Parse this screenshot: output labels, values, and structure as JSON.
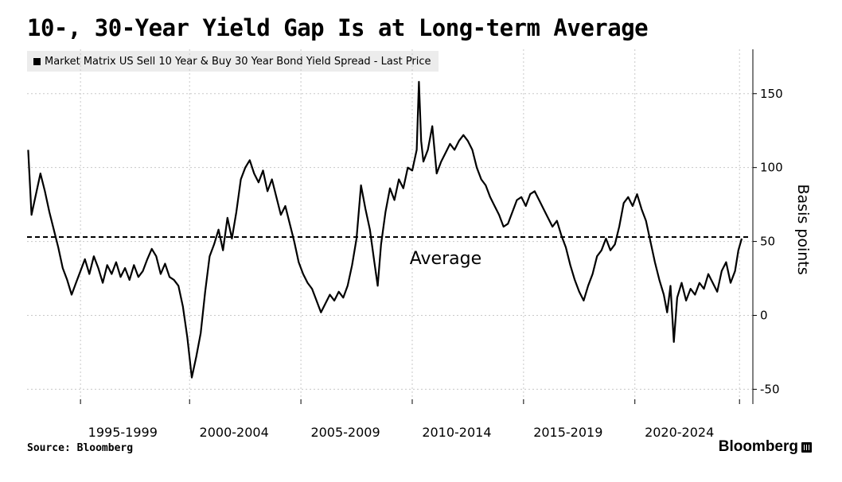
{
  "title": "10-, 30-Year Yield Gap Is at Long-term Average",
  "legend": {
    "label": "Market Matrix US Sell 10 Year & Buy 30 Year Bond Yield Spread - Last Price",
    "color": "#000000"
  },
  "source": "Source: Bloomberg",
  "brand": "Bloomberg",
  "brand_icon": "bloomberg-terminal-icon",
  "chart_data": {
    "type": "line",
    "ylabel": "Basis points",
    "ylim": [
      -60,
      180
    ],
    "yticks": [
      -50,
      0,
      50,
      100,
      150
    ],
    "xlim": [
      1993.2,
      2025.8
    ],
    "xticks": [
      {
        "label": "1995-1999",
        "at": 1997.5
      },
      {
        "label": "2000-2004",
        "at": 2002.5
      },
      {
        "label": "2005-2009",
        "at": 2007.5
      },
      {
        "label": "2010-2014",
        "at": 2012.5
      },
      {
        "label": "2015-2019",
        "at": 2017.5
      },
      {
        "label": "2020-2024",
        "at": 2022.5
      }
    ],
    "gridlines_x": [
      1995.6,
      2000.5,
      2005.5,
      2010.5,
      2015.5,
      2020.5,
      2025.2
    ],
    "grid": true,
    "average": {
      "value": 53,
      "label": "Average"
    },
    "series": [
      {
        "name": "Market Matrix US Sell 10 Year & Buy 30 Year Bond Yield Spread - Last Price",
        "color": "#000000",
        "points": [
          [
            1993.25,
            112
          ],
          [
            1993.4,
            68
          ],
          [
            1993.6,
            82
          ],
          [
            1993.8,
            96
          ],
          [
            1994.0,
            84
          ],
          [
            1994.2,
            70
          ],
          [
            1994.4,
            58
          ],
          [
            1994.6,
            46
          ],
          [
            1994.8,
            32
          ],
          [
            1995.0,
            24
          ],
          [
            1995.2,
            14
          ],
          [
            1995.4,
            22
          ],
          [
            1995.6,
            30
          ],
          [
            1995.8,
            38
          ],
          [
            1996.0,
            28
          ],
          [
            1996.2,
            40
          ],
          [
            1996.4,
            32
          ],
          [
            1996.6,
            22
          ],
          [
            1996.8,
            34
          ],
          [
            1997.0,
            28
          ],
          [
            1997.2,
            36
          ],
          [
            1997.4,
            26
          ],
          [
            1997.6,
            32
          ],
          [
            1997.8,
            24
          ],
          [
            1998.0,
            34
          ],
          [
            1998.2,
            26
          ],
          [
            1998.4,
            30
          ],
          [
            1998.6,
            38
          ],
          [
            1998.8,
            45
          ],
          [
            1999.0,
            40
          ],
          [
            1999.2,
            28
          ],
          [
            1999.4,
            35
          ],
          [
            1999.6,
            26
          ],
          [
            1999.8,
            24
          ],
          [
            2000.0,
            20
          ],
          [
            2000.2,
            6
          ],
          [
            2000.4,
            -15
          ],
          [
            2000.6,
            -42
          ],
          [
            2000.8,
            -28
          ],
          [
            2001.0,
            -12
          ],
          [
            2001.2,
            16
          ],
          [
            2001.4,
            40
          ],
          [
            2001.6,
            48
          ],
          [
            2001.8,
            58
          ],
          [
            2002.0,
            44
          ],
          [
            2002.2,
            66
          ],
          [
            2002.4,
            52
          ],
          [
            2002.6,
            70
          ],
          [
            2002.8,
            92
          ],
          [
            2003.0,
            100
          ],
          [
            2003.2,
            105
          ],
          [
            2003.4,
            96
          ],
          [
            2003.6,
            90
          ],
          [
            2003.8,
            98
          ],
          [
            2004.0,
            84
          ],
          [
            2004.2,
            92
          ],
          [
            2004.4,
            80
          ],
          [
            2004.6,
            68
          ],
          [
            2004.8,
            74
          ],
          [
            2005.0,
            62
          ],
          [
            2005.2,
            50
          ],
          [
            2005.4,
            36
          ],
          [
            2005.6,
            28
          ],
          [
            2005.8,
            22
          ],
          [
            2006.0,
            18
          ],
          [
            2006.2,
            10
          ],
          [
            2006.4,
            2
          ],
          [
            2006.6,
            8
          ],
          [
            2006.8,
            14
          ],
          [
            2007.0,
            10
          ],
          [
            2007.2,
            16
          ],
          [
            2007.4,
            12
          ],
          [
            2007.6,
            20
          ],
          [
            2007.8,
            34
          ],
          [
            2008.0,
            52
          ],
          [
            2008.2,
            88
          ],
          [
            2008.4,
            72
          ],
          [
            2008.6,
            58
          ],
          [
            2008.8,
            36
          ],
          [
            2008.95,
            20
          ],
          [
            2009.1,
            48
          ],
          [
            2009.3,
            70
          ],
          [
            2009.5,
            86
          ],
          [
            2009.7,
            78
          ],
          [
            2009.9,
            92
          ],
          [
            2010.1,
            86
          ],
          [
            2010.3,
            100
          ],
          [
            2010.5,
            98
          ],
          [
            2010.7,
            112
          ],
          [
            2010.8,
            158
          ],
          [
            2010.9,
            118
          ],
          [
            2011.0,
            104
          ],
          [
            2011.2,
            112
          ],
          [
            2011.4,
            128
          ],
          [
            2011.6,
            96
          ],
          [
            2011.8,
            104
          ],
          [
            2012.0,
            110
          ],
          [
            2012.2,
            116
          ],
          [
            2012.4,
            112
          ],
          [
            2012.6,
            118
          ],
          [
            2012.8,
            122
          ],
          [
            2013.0,
            118
          ],
          [
            2013.2,
            112
          ],
          [
            2013.4,
            100
          ],
          [
            2013.6,
            92
          ],
          [
            2013.8,
            88
          ],
          [
            2014.0,
            80
          ],
          [
            2014.2,
            74
          ],
          [
            2014.4,
            68
          ],
          [
            2014.6,
            60
          ],
          [
            2014.8,
            62
          ],
          [
            2015.0,
            70
          ],
          [
            2015.2,
            78
          ],
          [
            2015.4,
            80
          ],
          [
            2015.6,
            74
          ],
          [
            2015.8,
            82
          ],
          [
            2016.0,
            84
          ],
          [
            2016.2,
            78
          ],
          [
            2016.4,
            72
          ],
          [
            2016.6,
            66
          ],
          [
            2016.8,
            60
          ],
          [
            2017.0,
            64
          ],
          [
            2017.2,
            54
          ],
          [
            2017.4,
            46
          ],
          [
            2017.6,
            34
          ],
          [
            2017.8,
            24
          ],
          [
            2018.0,
            16
          ],
          [
            2018.2,
            10
          ],
          [
            2018.4,
            20
          ],
          [
            2018.6,
            28
          ],
          [
            2018.8,
            40
          ],
          [
            2019.0,
            44
          ],
          [
            2019.2,
            52
          ],
          [
            2019.4,
            44
          ],
          [
            2019.6,
            48
          ],
          [
            2019.8,
            60
          ],
          [
            2020.0,
            76
          ],
          [
            2020.2,
            80
          ],
          [
            2020.4,
            74
          ],
          [
            2020.6,
            82
          ],
          [
            2020.8,
            72
          ],
          [
            2021.0,
            64
          ],
          [
            2021.2,
            50
          ],
          [
            2021.4,
            36
          ],
          [
            2021.6,
            24
          ],
          [
            2021.8,
            14
          ],
          [
            2021.95,
            2
          ],
          [
            2022.1,
            20
          ],
          [
            2022.25,
            -18
          ],
          [
            2022.4,
            12
          ],
          [
            2022.6,
            22
          ],
          [
            2022.8,
            10
          ],
          [
            2023.0,
            18
          ],
          [
            2023.2,
            14
          ],
          [
            2023.4,
            22
          ],
          [
            2023.6,
            18
          ],
          [
            2023.8,
            28
          ],
          [
            2024.0,
            22
          ],
          [
            2024.2,
            16
          ],
          [
            2024.4,
            30
          ],
          [
            2024.6,
            36
          ],
          [
            2024.8,
            22
          ],
          [
            2025.0,
            30
          ],
          [
            2025.15,
            44
          ],
          [
            2025.3,
            52
          ]
        ]
      }
    ]
  }
}
